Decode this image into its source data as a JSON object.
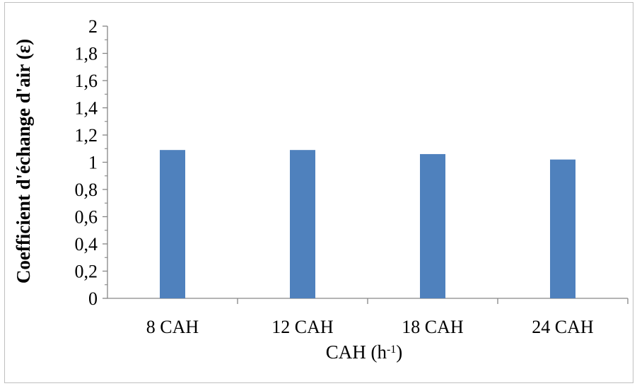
{
  "chart_data": {
    "type": "bar",
    "categories": [
      "8 CAH",
      "12 CAH",
      "18 CAH",
      "24 CAH"
    ],
    "values": [
      1.09,
      1.09,
      1.06,
      1.02
    ],
    "xlabel": "CAH (h-1)",
    "xlabel_base": "CAH (h",
    "xlabel_sup": "-1",
    "xlabel_close": ")",
    "ylabel": "Coefficient d'échange d'air (ε)",
    "ylim": [
      0,
      2
    ],
    "y_ticks": [
      "0",
      "0,2",
      "0,4",
      "0,6",
      "0,8",
      "1",
      "1,2",
      "1,4",
      "1,6",
      "1,8",
      "2"
    ],
    "bar_color": "#4f81bd",
    "grid": false,
    "legend": "none"
  }
}
